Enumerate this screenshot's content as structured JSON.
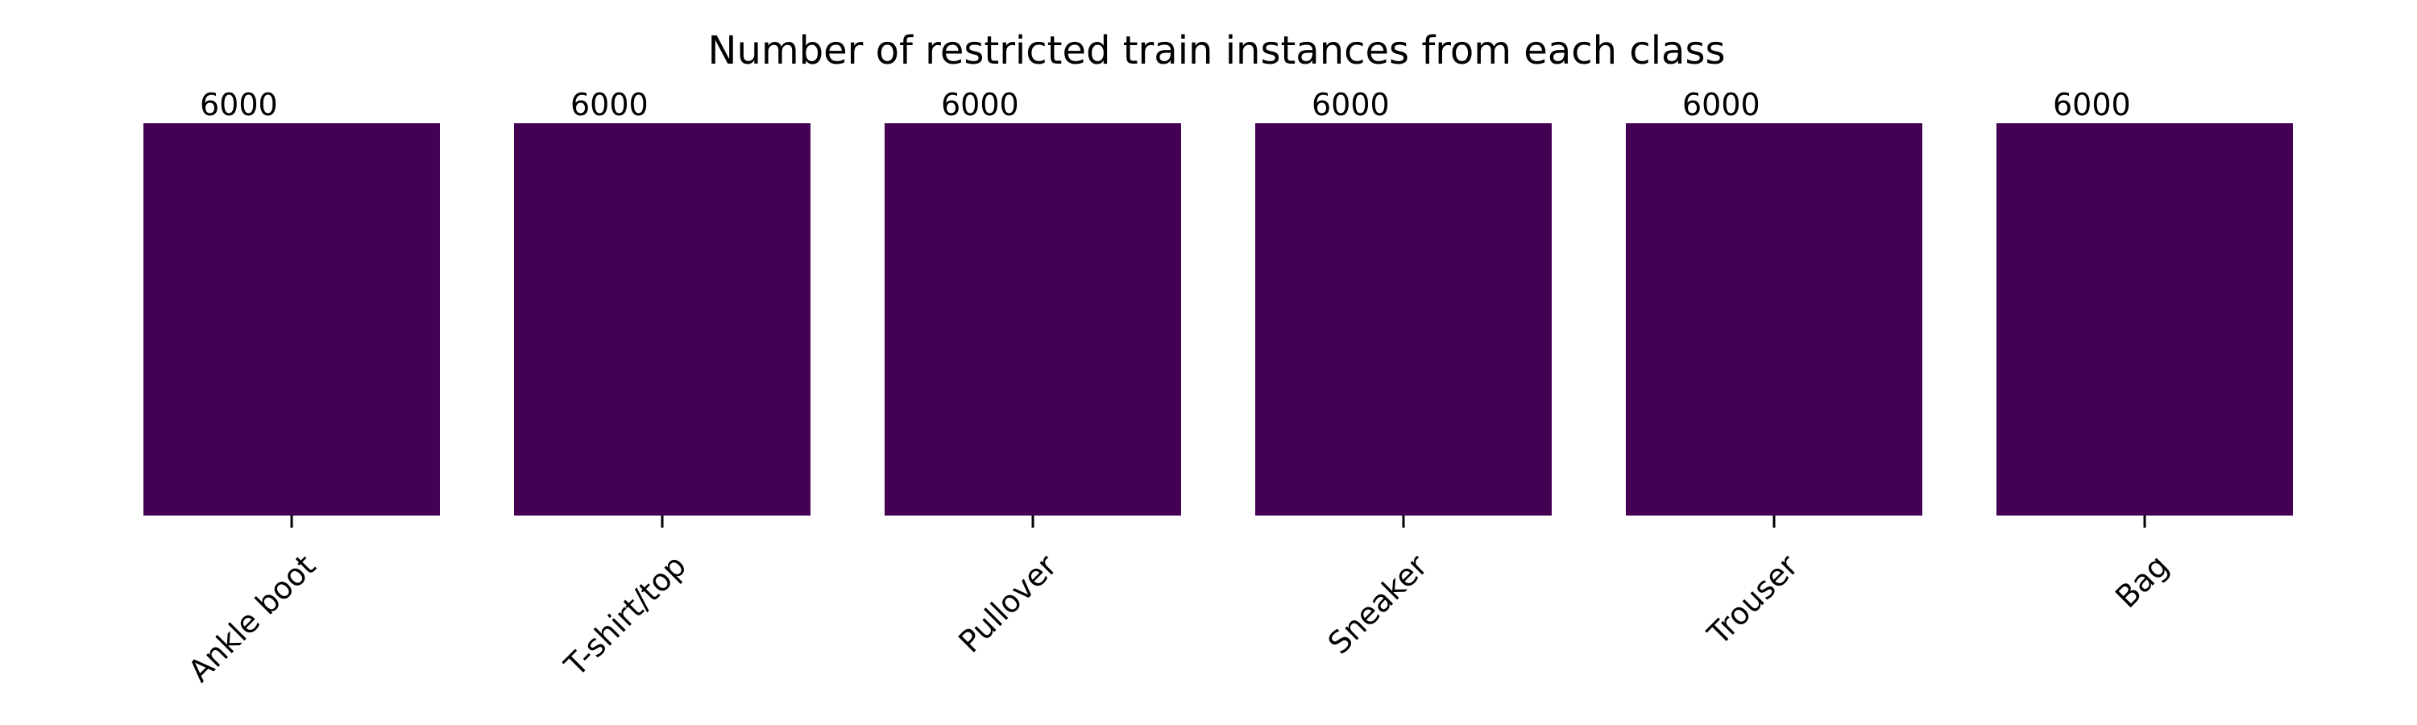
{
  "chart_data": {
    "type": "bar",
    "title": "Number of restricted train instances from each class",
    "categories": [
      "Ankle boot",
      "T-shirt/top",
      "Pullover",
      "Sneaker",
      "Trouser",
      "Bag"
    ],
    "values": [
      6000,
      6000,
      6000,
      6000,
      6000,
      6000
    ],
    "data_labels": [
      "6000",
      "6000",
      "6000",
      "6000",
      "6000",
      "6000"
    ],
    "ylim": [
      0,
      6000
    ],
    "xlabel": "",
    "ylabel": "",
    "grid": false,
    "legend": "none",
    "bar_color": "#440154"
  }
}
